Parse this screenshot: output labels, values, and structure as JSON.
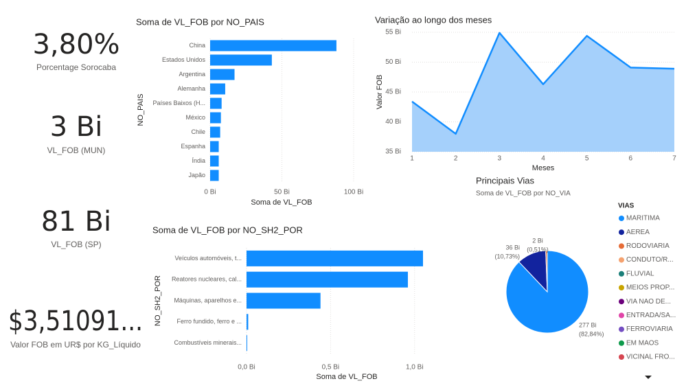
{
  "cards": [
    {
      "value": "3,80%",
      "label": "Porcentage Sorocaba"
    },
    {
      "value": "3 Bi",
      "label": "VL_FOB (MUN)"
    },
    {
      "value": "81 Bi",
      "label": "VL_FOB (SP)"
    },
    {
      "value": "$3,51091...",
      "label": "Valor FOB em UR$ por KG_Líquido"
    }
  ],
  "chart_data": [
    {
      "type": "hbar",
      "title": "Soma de VL_FOB por NO_PAIS",
      "categories": [
        "China",
        "Estados Unidos",
        "Argentina",
        "Alemanha",
        "Países Baixos (H...",
        "México",
        "Chile",
        "Espanha",
        "Índia",
        "Japão"
      ],
      "values": [
        88,
        43,
        17,
        10.5,
        8,
        7.5,
        7,
        6,
        6,
        6
      ],
      "color": "#118dff",
      "xlim": [
        0,
        100
      ],
      "xticks": [
        {
          "value": 0,
          "label": "0 Bi"
        },
        {
          "value": 50,
          "label": "50 Bi"
        },
        {
          "value": 100,
          "label": "100 Bi"
        }
      ],
      "x_label": "Soma de VL_FOB",
      "y_label": "NO_PAIS",
      "grid": true
    },
    {
      "type": "area",
      "title": "Variação ao longo dos meses",
      "x": [
        1,
        2,
        3,
        4,
        5,
        6,
        7
      ],
      "values": [
        43.4,
        38.0,
        54.9,
        46.3,
        54.4,
        49.1,
        48.9
      ],
      "color": "#118dff",
      "fill": "#a5d0fb",
      "xlim": [
        1,
        7
      ],
      "xticks": [
        1,
        2,
        3,
        4,
        5,
        6,
        7
      ],
      "ylim": [
        35,
        55
      ],
      "yticks": [
        {
          "value": 35,
          "label": "35 Bi"
        },
        {
          "value": 40,
          "label": "40 Bi"
        },
        {
          "value": 45,
          "label": "45 Bi"
        },
        {
          "value": 50,
          "label": "50 Bi"
        },
        {
          "value": 55,
          "label": "55 Bi"
        }
      ],
      "x_label": "Meses",
      "y_label": "Valor FOB",
      "grid": true
    },
    {
      "type": "hbar",
      "title": "Soma de VL_FOB por NO_SH2_POR",
      "categories": [
        "Veículos automóveis, t...",
        "Reatores nucleares, cal...",
        "Máquinas, aparelhos e...",
        "Ferro fundido, ferro e ...",
        "Combustíveis minerais..."
      ],
      "values": [
        1.05,
        0.96,
        0.44,
        0.01,
        0.003
      ],
      "color": "#118dff",
      "xlim": [
        0,
        1.05
      ],
      "xticks": [
        {
          "value": 0,
          "label": "0,0 Bi"
        },
        {
          "value": 0.5,
          "label": "0,5 Bi"
        },
        {
          "value": 1,
          "label": "1,0 Bi"
        }
      ],
      "x_label": "Soma de VL_FOB",
      "y_label": "NO_SH2_POR",
      "grid": true
    },
    {
      "type": "pie",
      "title": "Principais Vias",
      "subtitle": "Soma de VL_FOB por NO_VIA",
      "legend_title": "VIAS",
      "categories": [
        "MARITIMA",
        "AEREA",
        "RODOVIARIA",
        "CONDUTO/R...",
        "FLUVIAL",
        "MEIOS PROP...",
        "VIA NAO DE...",
        "ENTRADA/SA...",
        "FERROVIARIA",
        "EM MAOS",
        "VICINAL FRO..."
      ],
      "values": [
        277,
        36,
        2,
        null,
        null,
        null,
        null,
        null,
        null,
        null,
        null
      ],
      "value_labels": [
        "277 Bi",
        "36 Bi",
        "2 Bi",
        null,
        null,
        null,
        null,
        null,
        null,
        null,
        null
      ],
      "share_labels": [
        "(82,84%)",
        "(10,73%)",
        "(0,51%)",
        null,
        null,
        null,
        null,
        null,
        null,
        null,
        null
      ],
      "colors": [
        "#118dff",
        "#12239e",
        "#e66c37",
        "#f5a26f",
        "#1b7f79",
        "#c8a400",
        "#6b007b",
        "#e044a7",
        "#744ec2",
        "#0e9a4b",
        "#d64550"
      ]
    }
  ]
}
